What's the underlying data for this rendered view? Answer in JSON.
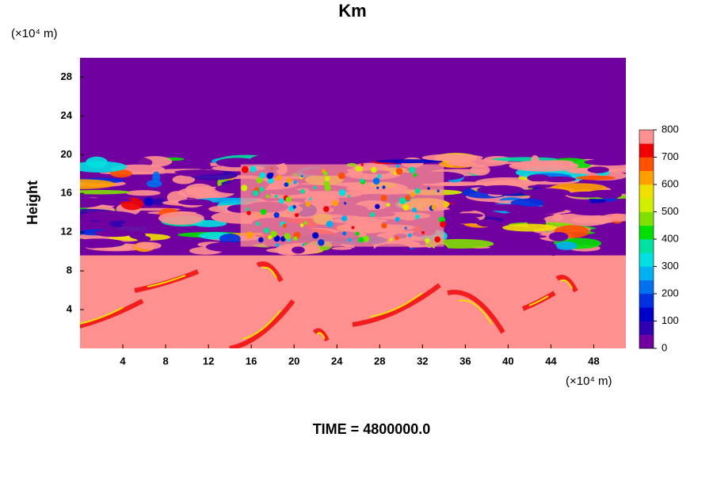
{
  "chart_data": {
    "type": "contour",
    "title": "Km",
    "x_unit_label": "(×10⁴ m)",
    "y_unit_label": "(×10⁴ m)",
    "y_label": "Height",
    "xlim": [
      0,
      51
    ],
    "xticks": [
      4,
      8,
      12,
      16,
      20,
      24,
      28,
      32,
      36,
      40,
      44,
      48
    ],
    "ylim": [
      0,
      30
    ],
    "yticks": [
      4,
      8,
      12,
      16,
      20,
      24,
      28
    ],
    "colorbar": {
      "lim": [
        0,
        800
      ],
      "ticks": [
        0,
        100,
        200,
        300,
        400,
        500,
        600,
        700,
        800
      ],
      "colors": [
        "#7000a0",
        "#3000b0",
        "#0000c8",
        "#0030e0",
        "#0070f0",
        "#00b0f0",
        "#00e0e0",
        "#00e0a0",
        "#00e000",
        "#80e000",
        "#d0f000",
        "#f0e000",
        "#ffa000",
        "#ff5000",
        "#f00000",
        "#ff9090"
      ]
    },
    "footer": "TIME = 4800000.0"
  }
}
